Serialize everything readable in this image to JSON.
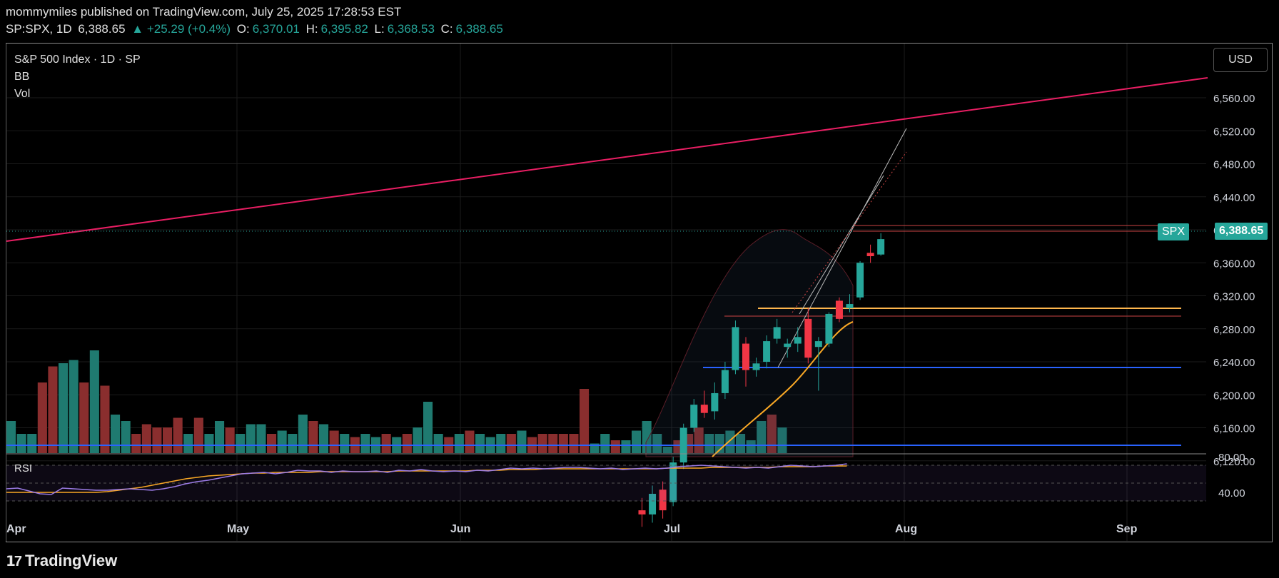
{
  "header": {
    "published_line": "mommymiles published on TradingView.com, July 25, 2025 17:28:53 EST",
    "symbol": "SP:SPX, 1D",
    "last": "6,388.65",
    "change": "▲ +25.29 (+0.4%)",
    "o_label": "O:",
    "o": "6,370.01",
    "h_label": "H:",
    "h": "6,395.82",
    "l_label": "L:",
    "l": "6,368.53",
    "c_label": "C:",
    "c": "6,388.65"
  },
  "legend": {
    "title": "S&P 500 Index · 1D · SP",
    "bb": "BB",
    "vol": "Vol"
  },
  "rsi_label": "RSI",
  "currency_button": "USD",
  "price_tag": {
    "symbol": "SPX",
    "price": "6,388.65"
  },
  "footer": {
    "brand": "TradingView",
    "logo_icon": "tradingview-logo-icon"
  },
  "colors": {
    "up": "#26a69a",
    "down": "#f23645",
    "trend": "#e91e63",
    "ma": "#f9a825",
    "support": "#2962ff",
    "rsi": "#9c7ce6"
  },
  "chart_data": {
    "type": "candlestick",
    "y_ticks": [
      "6,560.00",
      "6,520.00",
      "6,480.00",
      "6,440.00",
      "6,400.00",
      "6,360.00",
      "6,320.00",
      "6,280.00",
      "6,240.00",
      "6,200.00",
      "6,160.00",
      "6,120.00"
    ],
    "x_ticks": [
      "Apr",
      "May",
      "Jun",
      "Jul",
      "Aug",
      "Sep"
    ],
    "rsi_ticks": [
      "80.00",
      "40.00"
    ],
    "candles": [
      {
        "o": 6060,
        "h": 6075,
        "l": 6040,
        "c": 6055
      },
      {
        "o": 6055,
        "h": 6090,
        "l": 6045,
        "c": 6080
      },
      {
        "o": 6085,
        "h": 6095,
        "l": 6050,
        "c": 6060
      },
      {
        "o": 6070,
        "h": 6125,
        "l": 6065,
        "c": 6118
      },
      {
        "o": 6118,
        "h": 6165,
        "l": 6110,
        "c": 6160
      },
      {
        "o": 6160,
        "h": 6195,
        "l": 6155,
        "c": 6188
      },
      {
        "o": 6188,
        "h": 6205,
        "l": 6172,
        "c": 6178
      },
      {
        "o": 6180,
        "h": 6215,
        "l": 6170,
        "c": 6202
      },
      {
        "o": 6202,
        "h": 6240,
        "l": 6195,
        "c": 6230
      },
      {
        "o": 6230,
        "h": 6290,
        "l": 6225,
        "c": 6282
      },
      {
        "o": 6262,
        "h": 6270,
        "l": 6210,
        "c": 6230
      },
      {
        "o": 6230,
        "h": 6245,
        "l": 6222,
        "c": 6238
      },
      {
        "o": 6240,
        "h": 6272,
        "l": 6232,
        "c": 6265
      },
      {
        "o": 6268,
        "h": 6292,
        "l": 6262,
        "c": 6282
      },
      {
        "o": 6258,
        "h": 6268,
        "l": 6245,
        "c": 6262
      },
      {
        "o": 6262,
        "h": 6282,
        "l": 6252,
        "c": 6270
      },
      {
        "o": 6292,
        "h": 6305,
        "l": 6238,
        "c": 6245
      },
      {
        "o": 6258,
        "h": 6270,
        "l": 6205,
        "c": 6265
      },
      {
        "o": 6262,
        "h": 6300,
        "l": 6258,
        "c": 6298
      },
      {
        "o": 6314,
        "h": 6318,
        "l": 6288,
        "c": 6292
      },
      {
        "o": 6305,
        "h": 6322,
        "l": 6300,
        "c": 6310
      },
      {
        "o": 6318,
        "h": 6362,
        "l": 6315,
        "c": 6360
      },
      {
        "o": 6372,
        "h": 6382,
        "l": 6360,
        "c": 6368
      },
      {
        "o": 6370.01,
        "h": 6395.82,
        "l": 6368.53,
        "c": 6388.65
      }
    ],
    "volume": [
      {
        "v": 0.78,
        "up": true
      },
      {
        "v": 0.74,
        "up": true
      },
      {
        "v": 0.74,
        "up": true
      },
      {
        "v": 0.9,
        "up": false
      },
      {
        "v": 0.95,
        "up": false
      },
      {
        "v": 0.96,
        "up": true
      },
      {
        "v": 0.97,
        "up": true
      },
      {
        "v": 0.9,
        "up": false
      },
      {
        "v": 1.0,
        "up": true
      },
      {
        "v": 0.89,
        "up": false
      },
      {
        "v": 0.8,
        "up": true
      },
      {
        "v": 0.78,
        "up": true
      },
      {
        "v": 0.74,
        "up": false
      },
      {
        "v": 0.77,
        "up": false
      },
      {
        "v": 0.76,
        "up": false
      },
      {
        "v": 0.76,
        "up": false
      },
      {
        "v": 0.79,
        "up": false
      },
      {
        "v": 0.74,
        "up": true
      },
      {
        "v": 0.79,
        "up": false
      },
      {
        "v": 0.74,
        "up": true
      },
      {
        "v": 0.78,
        "up": true
      },
      {
        "v": 0.76,
        "up": false
      },
      {
        "v": 0.74,
        "up": true
      },
      {
        "v": 0.77,
        "up": true
      },
      {
        "v": 0.77,
        "up": true
      },
      {
        "v": 0.74,
        "up": false
      },
      {
        "v": 0.75,
        "up": true
      },
      {
        "v": 0.74,
        "up": true
      },
      {
        "v": 0.8,
        "up": true
      },
      {
        "v": 0.78,
        "up": false
      },
      {
        "v": 0.77,
        "up": true
      },
      {
        "v": 0.75,
        "up": false
      },
      {
        "v": 0.74,
        "up": true
      },
      {
        "v": 0.73,
        "up": false
      },
      {
        "v": 0.74,
        "up": true
      },
      {
        "v": 0.73,
        "up": true
      },
      {
        "v": 0.74,
        "up": false
      },
      {
        "v": 0.73,
        "up": true
      },
      {
        "v": 0.74,
        "up": false
      },
      {
        "v": 0.76,
        "up": true
      },
      {
        "v": 0.84,
        "up": true
      },
      {
        "v": 0.74,
        "up": true
      },
      {
        "v": 0.73,
        "up": false
      },
      {
        "v": 0.74,
        "up": true
      },
      {
        "v": 0.75,
        "up": false
      },
      {
        "v": 0.74,
        "up": true
      },
      {
        "v": 0.73,
        "up": true
      },
      {
        "v": 0.74,
        "up": true
      },
      {
        "v": 0.74,
        "up": false
      },
      {
        "v": 0.75,
        "up": true
      },
      {
        "v": 0.73,
        "up": false
      },
      {
        "v": 0.74,
        "up": false
      },
      {
        "v": 0.74,
        "up": false
      },
      {
        "v": 0.74,
        "up": false
      },
      {
        "v": 0.74,
        "up": false
      },
      {
        "v": 0.88,
        "up": false
      },
      {
        "v": 0.71,
        "up": true
      },
      {
        "v": 0.74,
        "up": true
      },
      {
        "v": 0.72,
        "up": false
      },
      {
        "v": 0.72,
        "up": true
      },
      {
        "v": 0.75,
        "up": true
      },
      {
        "v": 0.78,
        "up": true
      },
      {
        "v": 0.74,
        "up": true
      },
      {
        "v": 0.7,
        "up": true
      },
      {
        "v": 0.72,
        "up": false
      },
      {
        "v": 0.74,
        "up": false
      },
      {
        "v": 0.76,
        "up": false
      },
      {
        "v": 0.74,
        "up": true
      },
      {
        "v": 0.74,
        "up": true
      },
      {
        "v": 0.75,
        "up": true
      },
      {
        "v": 0.74,
        "up": true
      },
      {
        "v": 0.72,
        "up": true
      },
      {
        "v": 0.78,
        "up": true
      },
      {
        "v": 0.8,
        "up": false
      },
      {
        "v": 0.76,
        "up": true
      }
    ],
    "rsi": [
      45,
      46,
      42,
      38,
      37,
      46,
      45,
      44,
      43,
      43,
      44,
      45,
      44,
      43,
      45,
      48,
      52,
      55,
      57,
      60,
      63,
      66,
      67,
      68,
      66,
      68,
      71,
      70,
      70,
      68,
      70,
      69,
      69,
      70,
      68,
      71,
      70,
      72,
      70,
      69,
      70,
      69,
      71,
      70,
      72,
      74,
      73,
      74,
      73,
      74,
      75,
      75,
      74,
      73,
      74,
      72,
      73,
      74,
      73,
      74,
      76,
      77,
      78,
      77,
      76,
      75,
      74,
      75,
      74,
      76,
      78,
      77,
      76,
      77,
      78,
      80
    ],
    "rsi_ma": [
      40,
      40,
      40,
      40,
      40,
      40,
      40,
      40,
      40,
      41,
      43,
      45,
      47,
      50,
      53,
      56,
      59,
      61,
      63,
      64,
      65,
      66,
      67,
      67,
      68,
      68,
      68,
      68,
      69,
      69,
      69,
      69,
      69,
      69,
      69,
      70,
      70,
      70,
      70,
      70,
      70,
      70,
      71,
      71,
      71,
      72,
      72,
      72,
      73,
      73,
      73,
      73,
      73,
      73,
      73,
      73,
      73,
      73,
      73,
      74,
      74,
      74,
      74,
      75,
      75,
      75,
      75,
      75,
      75,
      76,
      76,
      76,
      76,
      77,
      77,
      77
    ]
  }
}
